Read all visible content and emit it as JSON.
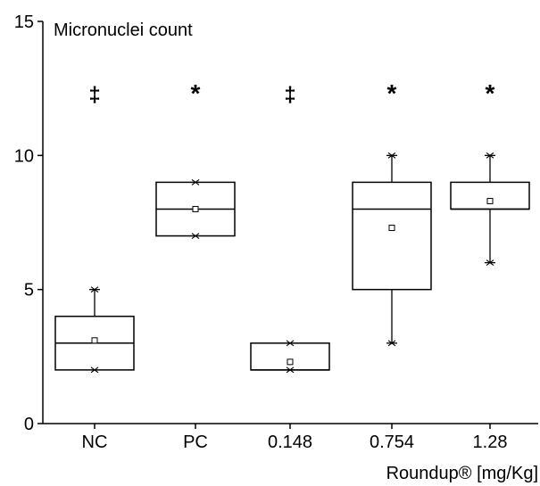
{
  "chart_data": {
    "type": "box",
    "title": "",
    "ylabel": "Micronuclei count",
    "xlabel": "Roundup® [mg/Kg]",
    "ylim": [
      0,
      15
    ],
    "yticks": [
      0,
      5,
      10,
      15
    ],
    "categories": [
      "NC",
      "PC",
      "0.148",
      "0.754",
      "1.28"
    ],
    "boxes": [
      {
        "category": "NC",
        "q1": 2,
        "median": 3,
        "q3": 4,
        "mean": 3.1,
        "whisker_low": 2,
        "whisker_high": 5,
        "min": 2,
        "max": 5,
        "significance": "‡"
      },
      {
        "category": "PC",
        "q1": 7,
        "median": 8,
        "q3": 9,
        "mean": 8,
        "whisker_low": 7,
        "whisker_high": 9,
        "min": 7,
        "max": 9,
        "significance": "*"
      },
      {
        "category": "0.148",
        "q1": 2,
        "median": 2,
        "q3": 3,
        "mean": 2.3,
        "whisker_low": 2,
        "whisker_high": 3,
        "min": 2,
        "max": 3,
        "significance": "‡"
      },
      {
        "category": "0.754",
        "q1": 5,
        "median": 8,
        "q3": 9,
        "mean": 7.3,
        "whisker_low": 3,
        "whisker_high": 10,
        "min": 3,
        "max": 10,
        "significance": "*"
      },
      {
        "category": "1.28",
        "q1": 8,
        "median": 8,
        "q3": 9,
        "mean": 8.3,
        "whisker_low": 6,
        "whisker_high": 10,
        "min": 6,
        "max": 10,
        "significance": "*"
      }
    ]
  }
}
